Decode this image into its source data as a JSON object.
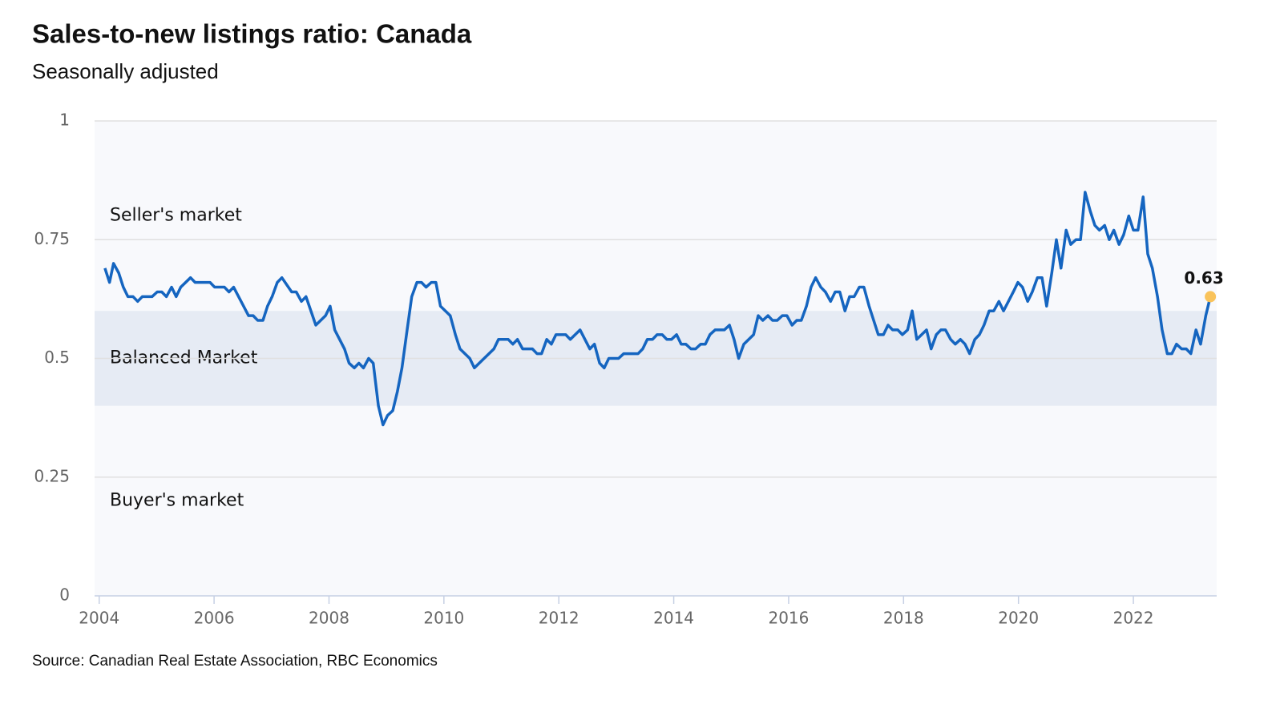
{
  "chart_data": {
    "type": "line",
    "title": "Sales-to-new listings ratio: Canada",
    "subtitle": "Seasonally adjusted",
    "source": "Source: Canadian Real Estate Association, RBC Economics",
    "color": "#1565c0",
    "end_color": "#f9c35b",
    "end_label": "0.63",
    "bands": [
      {
        "label": "Seller's market",
        "from": 0.6,
        "to": 1,
        "color": "#f8f9fc"
      },
      {
        "label": "Balanced Market",
        "from": 0.4,
        "to": 0.6,
        "color": "#e6ebf4"
      },
      {
        "label": "Buyer's market",
        "from": 0,
        "to": 0.4,
        "color": "#f8f9fc"
      }
    ],
    "xlim": [
      2003.92,
      2023.45
    ],
    "xticks": [
      2004,
      2006,
      2008,
      2010,
      2012,
      2014,
      2016,
      2018,
      2020,
      2022
    ],
    "ylim": [
      0,
      1
    ],
    "yticks": [
      0,
      0.25,
      0.5,
      0.75,
      1
    ],
    "grid": true,
    "x": [
      2004.1,
      2004.18,
      2004.25,
      2004.34,
      2004.42,
      2004.5,
      2004.59,
      2004.67,
      2004.75,
      2004.92,
      2005.01,
      2005.09,
      2005.17,
      2005.26,
      2005.34,
      2005.42,
      2005.59,
      2005.67,
      2005.93,
      2006.01,
      2006.18,
      2006.26,
      2006.34,
      2006.6,
      2006.68,
      2006.76,
      2006.85,
      2006.93,
      2007.01,
      2007.1,
      2007.18,
      2007.35,
      2007.43,
      2007.52,
      2007.6,
      2007.77,
      2007.94,
      2008.02,
      2008.1,
      2008.27,
      2008.35,
      2008.44,
      2008.52,
      2008.6,
      2008.69,
      2008.77,
      2008.86,
      2008.94,
      2009.02,
      2009.11,
      2009.19,
      2009.27,
      2009.36,
      2009.44,
      2009.53,
      2009.61,
      2009.69,
      2009.78,
      2009.86,
      2009.94,
      2010.11,
      2010.2,
      2010.28,
      2010.45,
      2010.53,
      2010.7,
      2010.87,
      2010.95,
      2011.12,
      2011.2,
      2011.28,
      2011.37,
      2011.54,
      2011.62,
      2011.7,
      2011.79,
      2011.87,
      2011.95,
      2012.12,
      2012.2,
      2012.37,
      2012.54,
      2012.62,
      2012.71,
      2012.79,
      2012.87,
      2013.04,
      2013.13,
      2013.38,
      2013.46,
      2013.54,
      2013.63,
      2013.71,
      2013.8,
      2013.88,
      2013.96,
      2014.05,
      2014.13,
      2014.21,
      2014.3,
      2014.38,
      2014.47,
      2014.55,
      2014.63,
      2014.72,
      2014.88,
      2014.97,
      2015.05,
      2015.13,
      2015.22,
      2015.39,
      2015.47,
      2015.55,
      2015.64,
      2015.72,
      2015.8,
      2015.89,
      2015.97,
      2016.06,
      2016.14,
      2016.22,
      2016.31,
      2016.39,
      2016.47,
      2016.56,
      2016.64,
      2016.73,
      2016.81,
      2016.89,
      2016.98,
      2017.06,
      2017.14,
      2017.23,
      2017.31,
      2017.4,
      2017.56,
      2017.65,
      2017.73,
      2017.81,
      2017.9,
      2017.98,
      2018.07,
      2018.15,
      2018.23,
      2018.4,
      2018.48,
      2018.57,
      2018.65,
      2018.73,
      2018.82,
      2018.9,
      2018.99,
      2019.07,
      2019.15,
      2019.24,
      2019.32,
      2019.4,
      2019.49,
      2019.57,
      2019.66,
      2019.74,
      2019.91,
      2019.99,
      2020.07,
      2020.16,
      2020.24,
      2020.33,
      2020.41,
      2020.49,
      2020.58,
      2020.66,
      2020.74,
      2020.83,
      2020.91,
      2021.0,
      2021.08,
      2021.16,
      2021.25,
      2021.33,
      2021.41,
      2021.5,
      2021.58,
      2021.66,
      2021.75,
      2021.83,
      2021.92,
      2022.0,
      2022.08,
      2022.17,
      2022.25,
      2022.33,
      2022.42,
      2022.5,
      2022.59,
      2022.67,
      2022.75,
      2022.84,
      2022.92,
      2023.0,
      2023.09,
      2023.17,
      2023.26,
      2023.34
    ],
    "values": [
      0.69,
      0.66,
      0.7,
      0.68,
      0.65,
      0.63,
      0.63,
      0.62,
      0.63,
      0.63,
      0.64,
      0.64,
      0.63,
      0.65,
      0.63,
      0.65,
      0.67,
      0.66,
      0.66,
      0.65,
      0.65,
      0.64,
      0.65,
      0.59,
      0.59,
      0.58,
      0.58,
      0.61,
      0.63,
      0.66,
      0.67,
      0.64,
      0.64,
      0.62,
      0.63,
      0.57,
      0.59,
      0.61,
      0.56,
      0.52,
      0.49,
      0.48,
      0.49,
      0.48,
      0.5,
      0.49,
      0.4,
      0.36,
      0.38,
      0.39,
      0.43,
      0.48,
      0.56,
      0.63,
      0.66,
      0.66,
      0.65,
      0.66,
      0.66,
      0.61,
      0.59,
      0.55,
      0.52,
      0.5,
      0.48,
      0.5,
      0.52,
      0.54,
      0.54,
      0.53,
      0.54,
      0.52,
      0.52,
      0.51,
      0.51,
      0.54,
      0.53,
      0.55,
      0.55,
      0.54,
      0.56,
      0.52,
      0.53,
      0.49,
      0.48,
      0.5,
      0.5,
      0.51,
      0.51,
      0.52,
      0.54,
      0.54,
      0.55,
      0.55,
      0.54,
      0.54,
      0.55,
      0.53,
      0.53,
      0.52,
      0.52,
      0.53,
      0.53,
      0.55,
      0.56,
      0.56,
      0.57,
      0.54,
      0.5,
      0.53,
      0.55,
      0.59,
      0.58,
      0.59,
      0.58,
      0.58,
      0.59,
      0.59,
      0.57,
      0.58,
      0.58,
      0.61,
      0.65,
      0.67,
      0.65,
      0.64,
      0.62,
      0.64,
      0.64,
      0.6,
      0.63,
      0.63,
      0.65,
      0.65,
      0.61,
      0.55,
      0.55,
      0.57,
      0.56,
      0.56,
      0.55,
      0.56,
      0.6,
      0.54,
      0.56,
      0.52,
      0.55,
      0.56,
      0.56,
      0.54,
      0.53,
      0.54,
      0.53,
      0.51,
      0.54,
      0.55,
      0.57,
      0.6,
      0.6,
      0.62,
      0.6,
      0.64,
      0.66,
      0.65,
      0.62,
      0.64,
      0.67,
      0.67,
      0.61,
      0.68,
      0.75,
      0.69,
      0.77,
      0.74,
      0.75,
      0.75,
      0.85,
      0.81,
      0.78,
      0.77,
      0.78,
      0.75,
      0.77,
      0.74,
      0.76,
      0.8,
      0.77,
      0.77,
      0.84,
      0.72,
      0.69,
      0.63,
      0.56,
      0.51,
      0.51,
      0.53,
      0.52,
      0.52,
      0.51,
      0.56,
      0.53,
      0.59,
      0.63
    ]
  }
}
